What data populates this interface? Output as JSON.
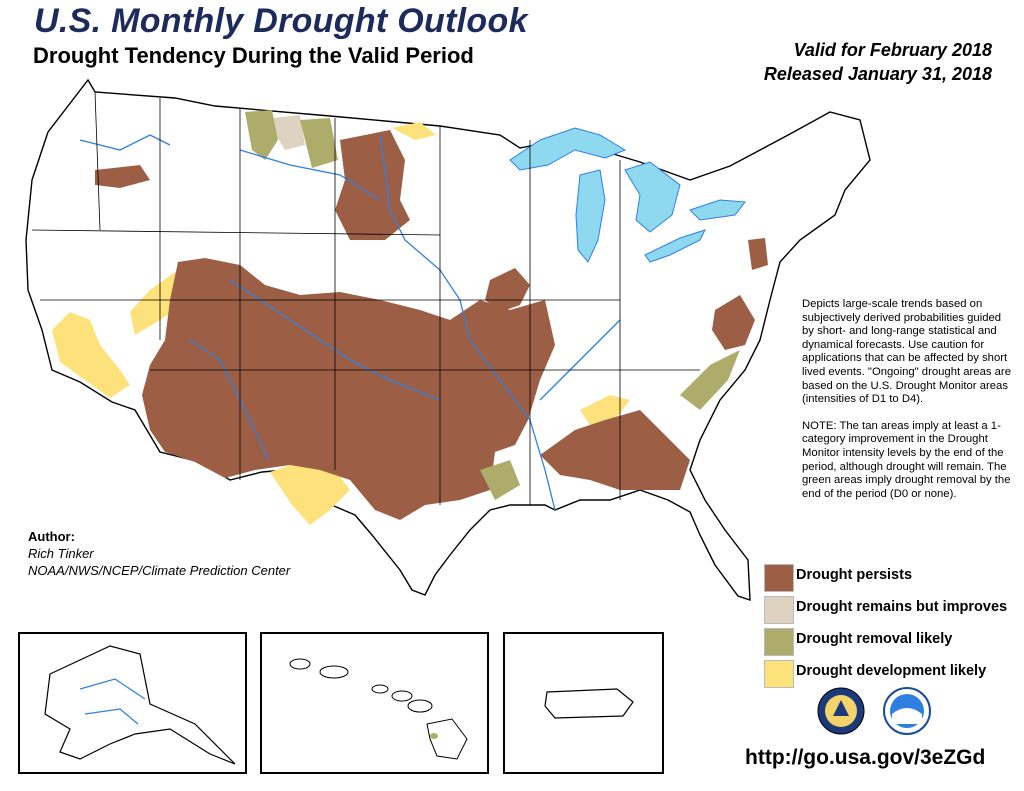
{
  "title": "U.S. Monthly Drought Outlook",
  "subtitle": "Drought Tendency During the Valid Period",
  "valid_line": "Valid for February 2018",
  "released_line": "Released January 31, 2018",
  "description": {
    "paragraph1": "Depicts large-scale trends based on subjectively derived probabilities guided by short- and long-range statistical and dynamical forecasts. Use caution for applications that can be affected by short lived events. \"Ongoing\" drought areas are based on the U.S. Drought Monitor areas (intensities of D1 to D4).",
    "paragraph2": "NOTE: The tan areas imply at least a 1-category improvement in the Drought Monitor intensity levels by the end of the period, although drought will remain. The green areas imply drought removal by the end of the period (D0 or none)."
  },
  "legend": [
    {
      "label": "Drought persists",
      "color": "#9c5f45"
    },
    {
      "label": "Drought remains but improves",
      "color": "#ddd3c0"
    },
    {
      "label": "Drought removal likely",
      "color": "#aeac6b"
    },
    {
      "label": "Drought development likely",
      "color": "#fde17b"
    }
  ],
  "author": {
    "heading": "Author:",
    "name": "Rich Tinker",
    "org": "NOAA/NWS/NCEP/Climate Prediction Center"
  },
  "url": "http://go.usa.gov/3eZGd",
  "insets": [
    "Alaska",
    "Hawaii",
    "Puerto Rico"
  ],
  "colors": {
    "title": "#1d2a5c",
    "water": "#8ed8f0",
    "rivers": "#2f7fe0",
    "land": "#ffffff",
    "borders": "#000000"
  },
  "icons": [
    "noaa-logo-icon",
    "doc-seal-icon"
  ]
}
